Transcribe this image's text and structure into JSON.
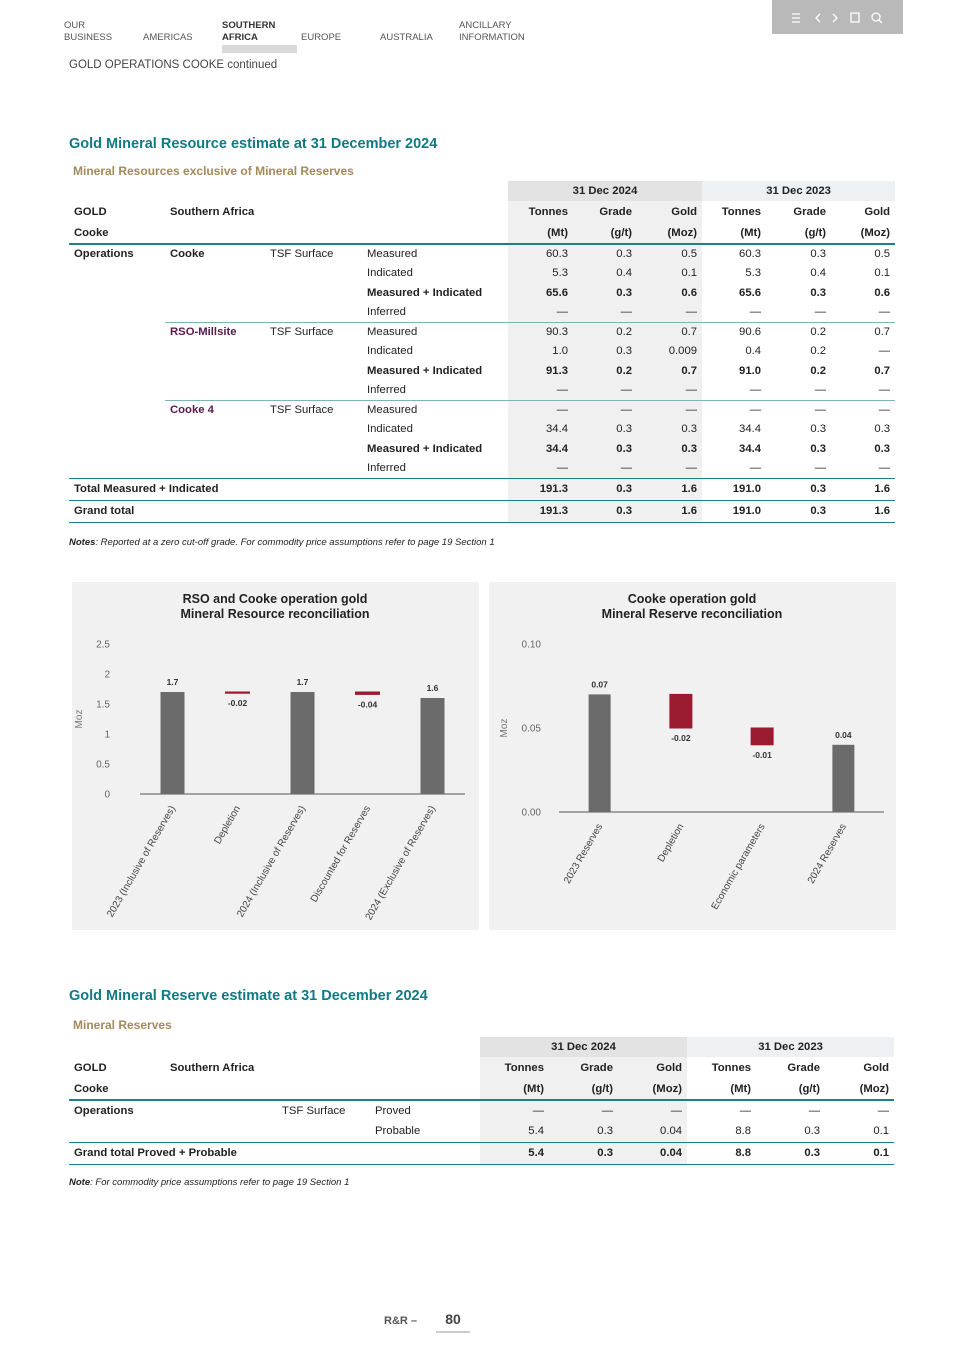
{
  "nav": {
    "items": [
      [
        "OUR",
        "BUSINESS"
      ],
      [
        "AMERICAS"
      ],
      [
        "SOUTHERN",
        "AFRICA"
      ],
      [
        "EUROPE"
      ],
      [
        "AUSTRALIA"
      ],
      [
        "ANCILLARY",
        "INFORMATION"
      ]
    ]
  },
  "header": {
    "section": "GOLD OPERATIONS COOKE continued"
  },
  "resource_table": {
    "title": "Gold Mineral Resource estimate at 31 December 2024",
    "subtitle": "Mineral Resources exclusive of Mineral Reserves",
    "periods": [
      "31 Dec 2024",
      "31 Dec 2023"
    ],
    "row_labels": [
      "GOLD",
      "Southern Africa"
    ],
    "sub_label": "Cooke",
    "columns": [
      "Tonnes",
      "Grade",
      "Gold",
      "Tonnes",
      "Grade",
      "Gold"
    ],
    "units": [
      "(Mt)",
      "(g/t)",
      "(Moz)",
      "(Mt)",
      "(g/t)",
      "(Moz)"
    ],
    "operations": {
      "label": "Operations",
      "sites": [
        {
          "name": "Cooke",
          "source": "TSF Surface",
          "rows": [
            {
              "category": "Measured",
              "values": [
                "60.3",
                "0.3",
                "0.5",
                "60.3",
                "0.3",
                "0.5"
              ]
            },
            {
              "category": "Indicated",
              "values": [
                "5.3",
                "0.4",
                "0.1",
                "5.3",
                "0.4",
                "0.1"
              ]
            },
            {
              "category": "Measured + Indicated",
              "values": [
                "65.6",
                "0.3",
                "0.6",
                "65.6",
                "0.3",
                "0.6"
              ]
            },
            {
              "category": "Inferred",
              "values": [
                "—",
                "—",
                "—",
                "—",
                "—",
                "—"
              ]
            }
          ]
        },
        {
          "name": "RSO-Millsite",
          "source": "TSF Surface",
          "rows": [
            {
              "category": "Measured",
              "values": [
                "90.3",
                "0.2",
                "0.7",
                "90.6",
                "0.2",
                "0.7"
              ]
            },
            {
              "category": "Indicated",
              "values": [
                "1.0",
                "0.3",
                "0.009",
                "0.4",
                "0.2",
                "—"
              ]
            },
            {
              "category": "Measured + Indicated",
              "values": [
                "91.3",
                "0.2",
                "0.7",
                "91.0",
                "0.2",
                "0.7"
              ]
            },
            {
              "category": "Inferred",
              "values": [
                "—",
                "—",
                "—",
                "—",
                "—",
                "—"
              ]
            }
          ]
        },
        {
          "name": "Cooke 4",
          "source": "TSF Surface",
          "rows": [
            {
              "category": "Measured",
              "values": [
                "—",
                "—",
                "—",
                "—",
                "—",
                "—"
              ]
            },
            {
              "category": "Indicated",
              "values": [
                "34.4",
                "0.3",
                "0.3",
                "34.4",
                "0.3",
                "0.3"
              ]
            },
            {
              "category": "Measured + Indicated",
              "values": [
                "34.4",
                "0.3",
                "0.3",
                "34.4",
                "0.3",
                "0.3"
              ]
            },
            {
              "category": "Inferred",
              "values": [
                "—",
                "—",
                "—",
                "—",
                "—",
                "—"
              ]
            }
          ]
        }
      ]
    },
    "totals": [
      {
        "label": "Total Measured + Indicated",
        "values": [
          "191.3",
          "0.3",
          "1.6",
          "191.0",
          "0.3",
          "1.6"
        ]
      },
      {
        "label": "Grand total",
        "values": [
          "191.3",
          "0.3",
          "1.6",
          "191.0",
          "0.3",
          "1.6"
        ]
      }
    ],
    "notes": {
      "label": "Notes",
      "text": ": Reported at a zero cut-off grade. For commodity price assumptions refer to page 19 Section 1"
    }
  },
  "chart_data": [
    {
      "type": "waterfall",
      "title": [
        "RSO and Cooke operation gold",
        "Mineral Resource reconciliation"
      ],
      "y_label": "Moz",
      "categories": [
        "2023 (Inclusive of Reserves)",
        "Depletion",
        "2024 (Inclusive of Reserves)",
        "Discounted for Reserves",
        "2024 (Exclusive of Reserves)"
      ],
      "values": [
        1.7,
        -0.02,
        1.7,
        -0.04,
        1.6
      ],
      "color": "#6b6b6b",
      "negative_color": "#9b1b30",
      "ylim": [
        0,
        2.5
      ],
      "yticks": [
        0,
        0.5,
        1,
        1.5,
        2,
        2.5
      ]
    },
    {
      "type": "waterfall",
      "title": [
        "Cooke operation gold",
        "Mineral Reserve reconciliation"
      ],
      "y_label": "Moz",
      "categories": [
        "2023 Reserves",
        "Depletion",
        "Economic parameters",
        "2024 Reserves"
      ],
      "values": [
        0.07,
        -0.02,
        -0.01,
        0.04
      ],
      "color": "#6b6b6b",
      "negative_color": "#9b1b30",
      "ylim": [
        0,
        0.1
      ],
      "yticks": [
        {
          "value": 0,
          "label": "0.00"
        },
        {
          "value": 0.05,
          "label": "0.05"
        },
        {
          "value": 0.1,
          "label": "0.10"
        }
      ]
    }
  ],
  "reserve_table": {
    "title": "Gold Mineral Reserve estimate at 31 December 2024",
    "subtitle": "Mineral Reserves",
    "periods": [
      "31 Dec 2024",
      "31 Dec 2023"
    ],
    "row_labels": [
      "GOLD",
      "Southern Africa"
    ],
    "sub_label": "Cooke",
    "columns": [
      "Tonnes",
      "Grade",
      "Gold",
      "Tonnes",
      "Grade",
      "Gold"
    ],
    "units": [
      "(Mt)",
      "(g/t)",
      "(Moz)",
      "(Mt)",
      "(g/t)",
      "(Moz)"
    ],
    "operations": {
      "label": "Operations",
      "sites": [
        {
          "source": "TSF Surface",
          "rows": [
            {
              "category": "Proved",
              "values": [
                "—",
                "—",
                "—",
                "—",
                "—",
                "—"
              ]
            },
            {
              "category": "Probable",
              "values": [
                "5.4",
                "0.3",
                "0.04",
                "8.8",
                "0.3",
                "0.1"
              ]
            }
          ]
        }
      ]
    },
    "totals": [
      {
        "label": "Grand total Proved + Probable",
        "values": [
          "5.4",
          "0.3",
          "0.04",
          "8.8",
          "0.3",
          "0.1"
        ]
      }
    ],
    "notes": {
      "label": "Note",
      "text": ": For commodity price assumptions refer to page 19 Section 1"
    }
  },
  "footer": {
    "label": "R&R –",
    "page": "80"
  }
}
